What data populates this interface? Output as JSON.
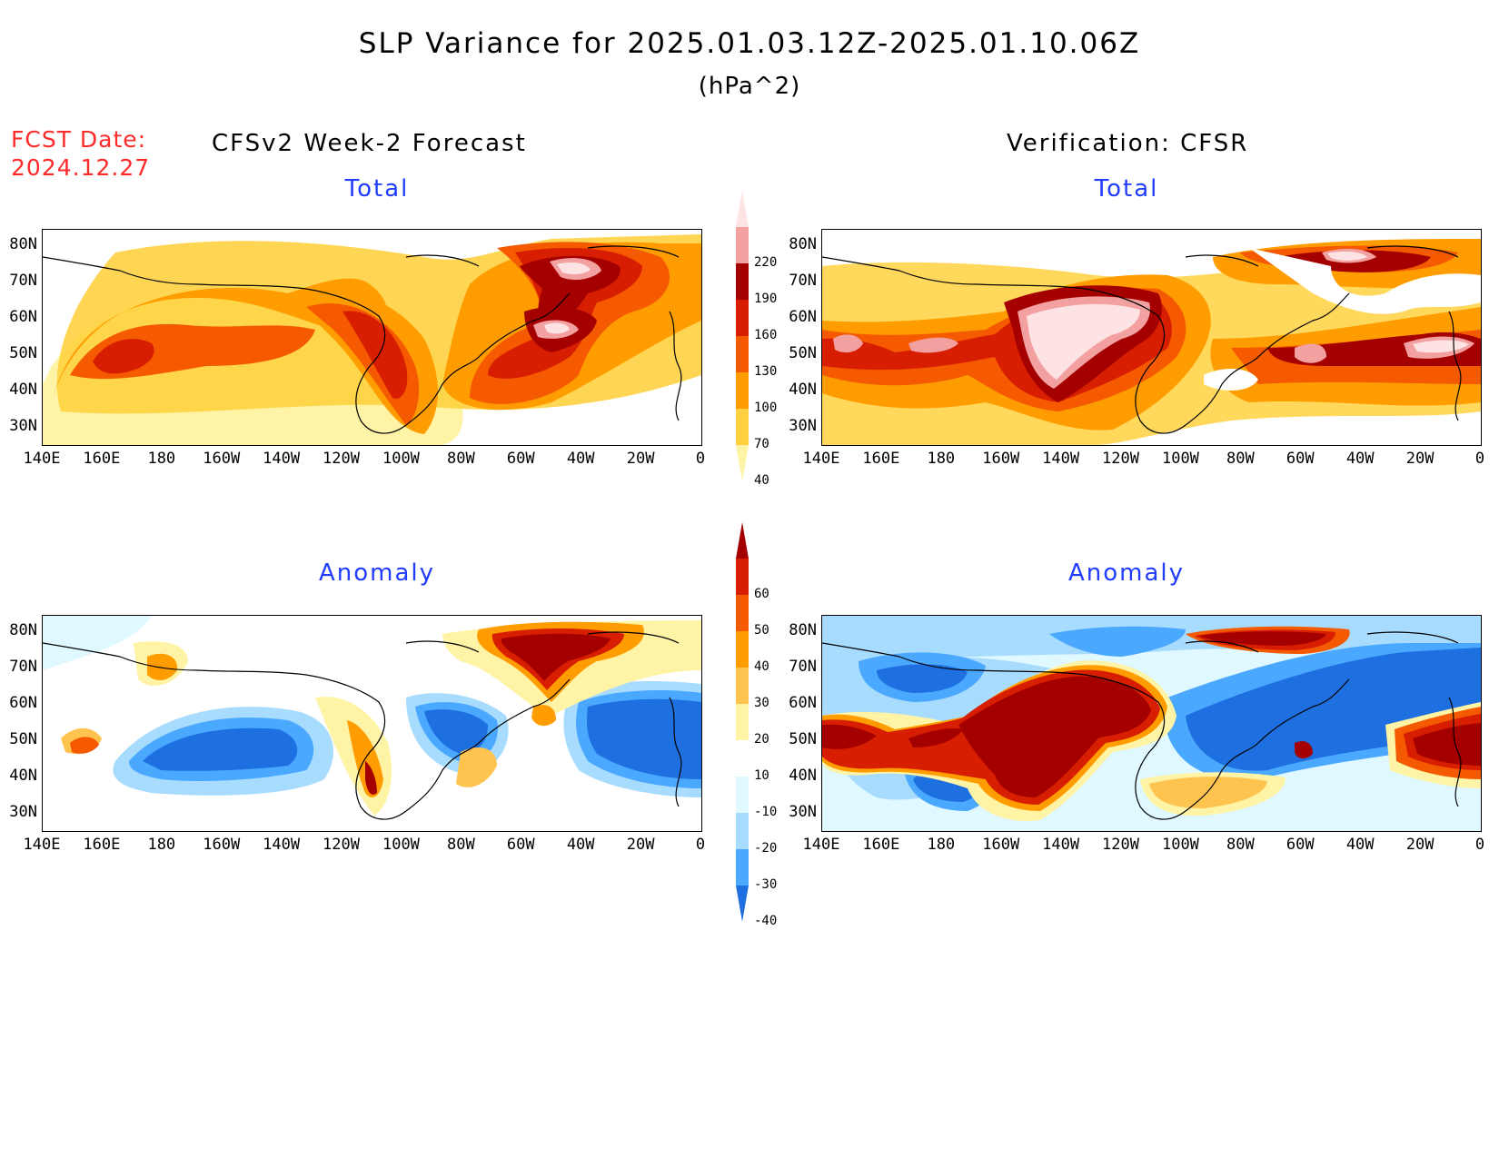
{
  "header": {
    "title": "SLP Variance for 2025.01.03.12Z-2025.01.10.06Z",
    "units": "(hPa^2)",
    "fcst_label": "FCST Date:",
    "fcst_date": "2024.12.27"
  },
  "columns": {
    "left": "CFSv2 Week-2 Forecast",
    "right": "Verification: CFSR"
  },
  "panels": {
    "total_left": "Total",
    "total_right": "Total",
    "anom_left": "Anomaly",
    "anom_right": "Anomaly"
  },
  "axes": {
    "lat": [
      "80N",
      "70N",
      "60N",
      "50N",
      "40N",
      "30N"
    ],
    "lon": [
      "140E",
      "160E",
      "180",
      "160W",
      "140W",
      "120W",
      "100W",
      "80W",
      "60W",
      "40W",
      "20W",
      "0"
    ]
  },
  "colorbars": {
    "total": {
      "labels": [
        "220",
        "190",
        "160",
        "130",
        "100",
        "70",
        "40"
      ],
      "colors": [
        "#fde3e3",
        "#f3a0a0",
        "#a50000",
        "#d81e00",
        "#f55a00",
        "#ff9d00",
        "#ffd140",
        "#fff3a6"
      ]
    },
    "anomaly": {
      "labels": [
        "60",
        "50",
        "40",
        "30",
        "20",
        "10",
        "-10",
        "-20",
        "-30",
        "-40"
      ],
      "colors": [
        "#a50000",
        "#d81e00",
        "#f55a00",
        "#ff9d00",
        "#ffc450",
        "#fff3a6",
        "#ffffff",
        "#e0f8ff",
        "#a8dcff",
        "#4aa8ff",
        "#1e6fe0"
      ]
    }
  }
}
